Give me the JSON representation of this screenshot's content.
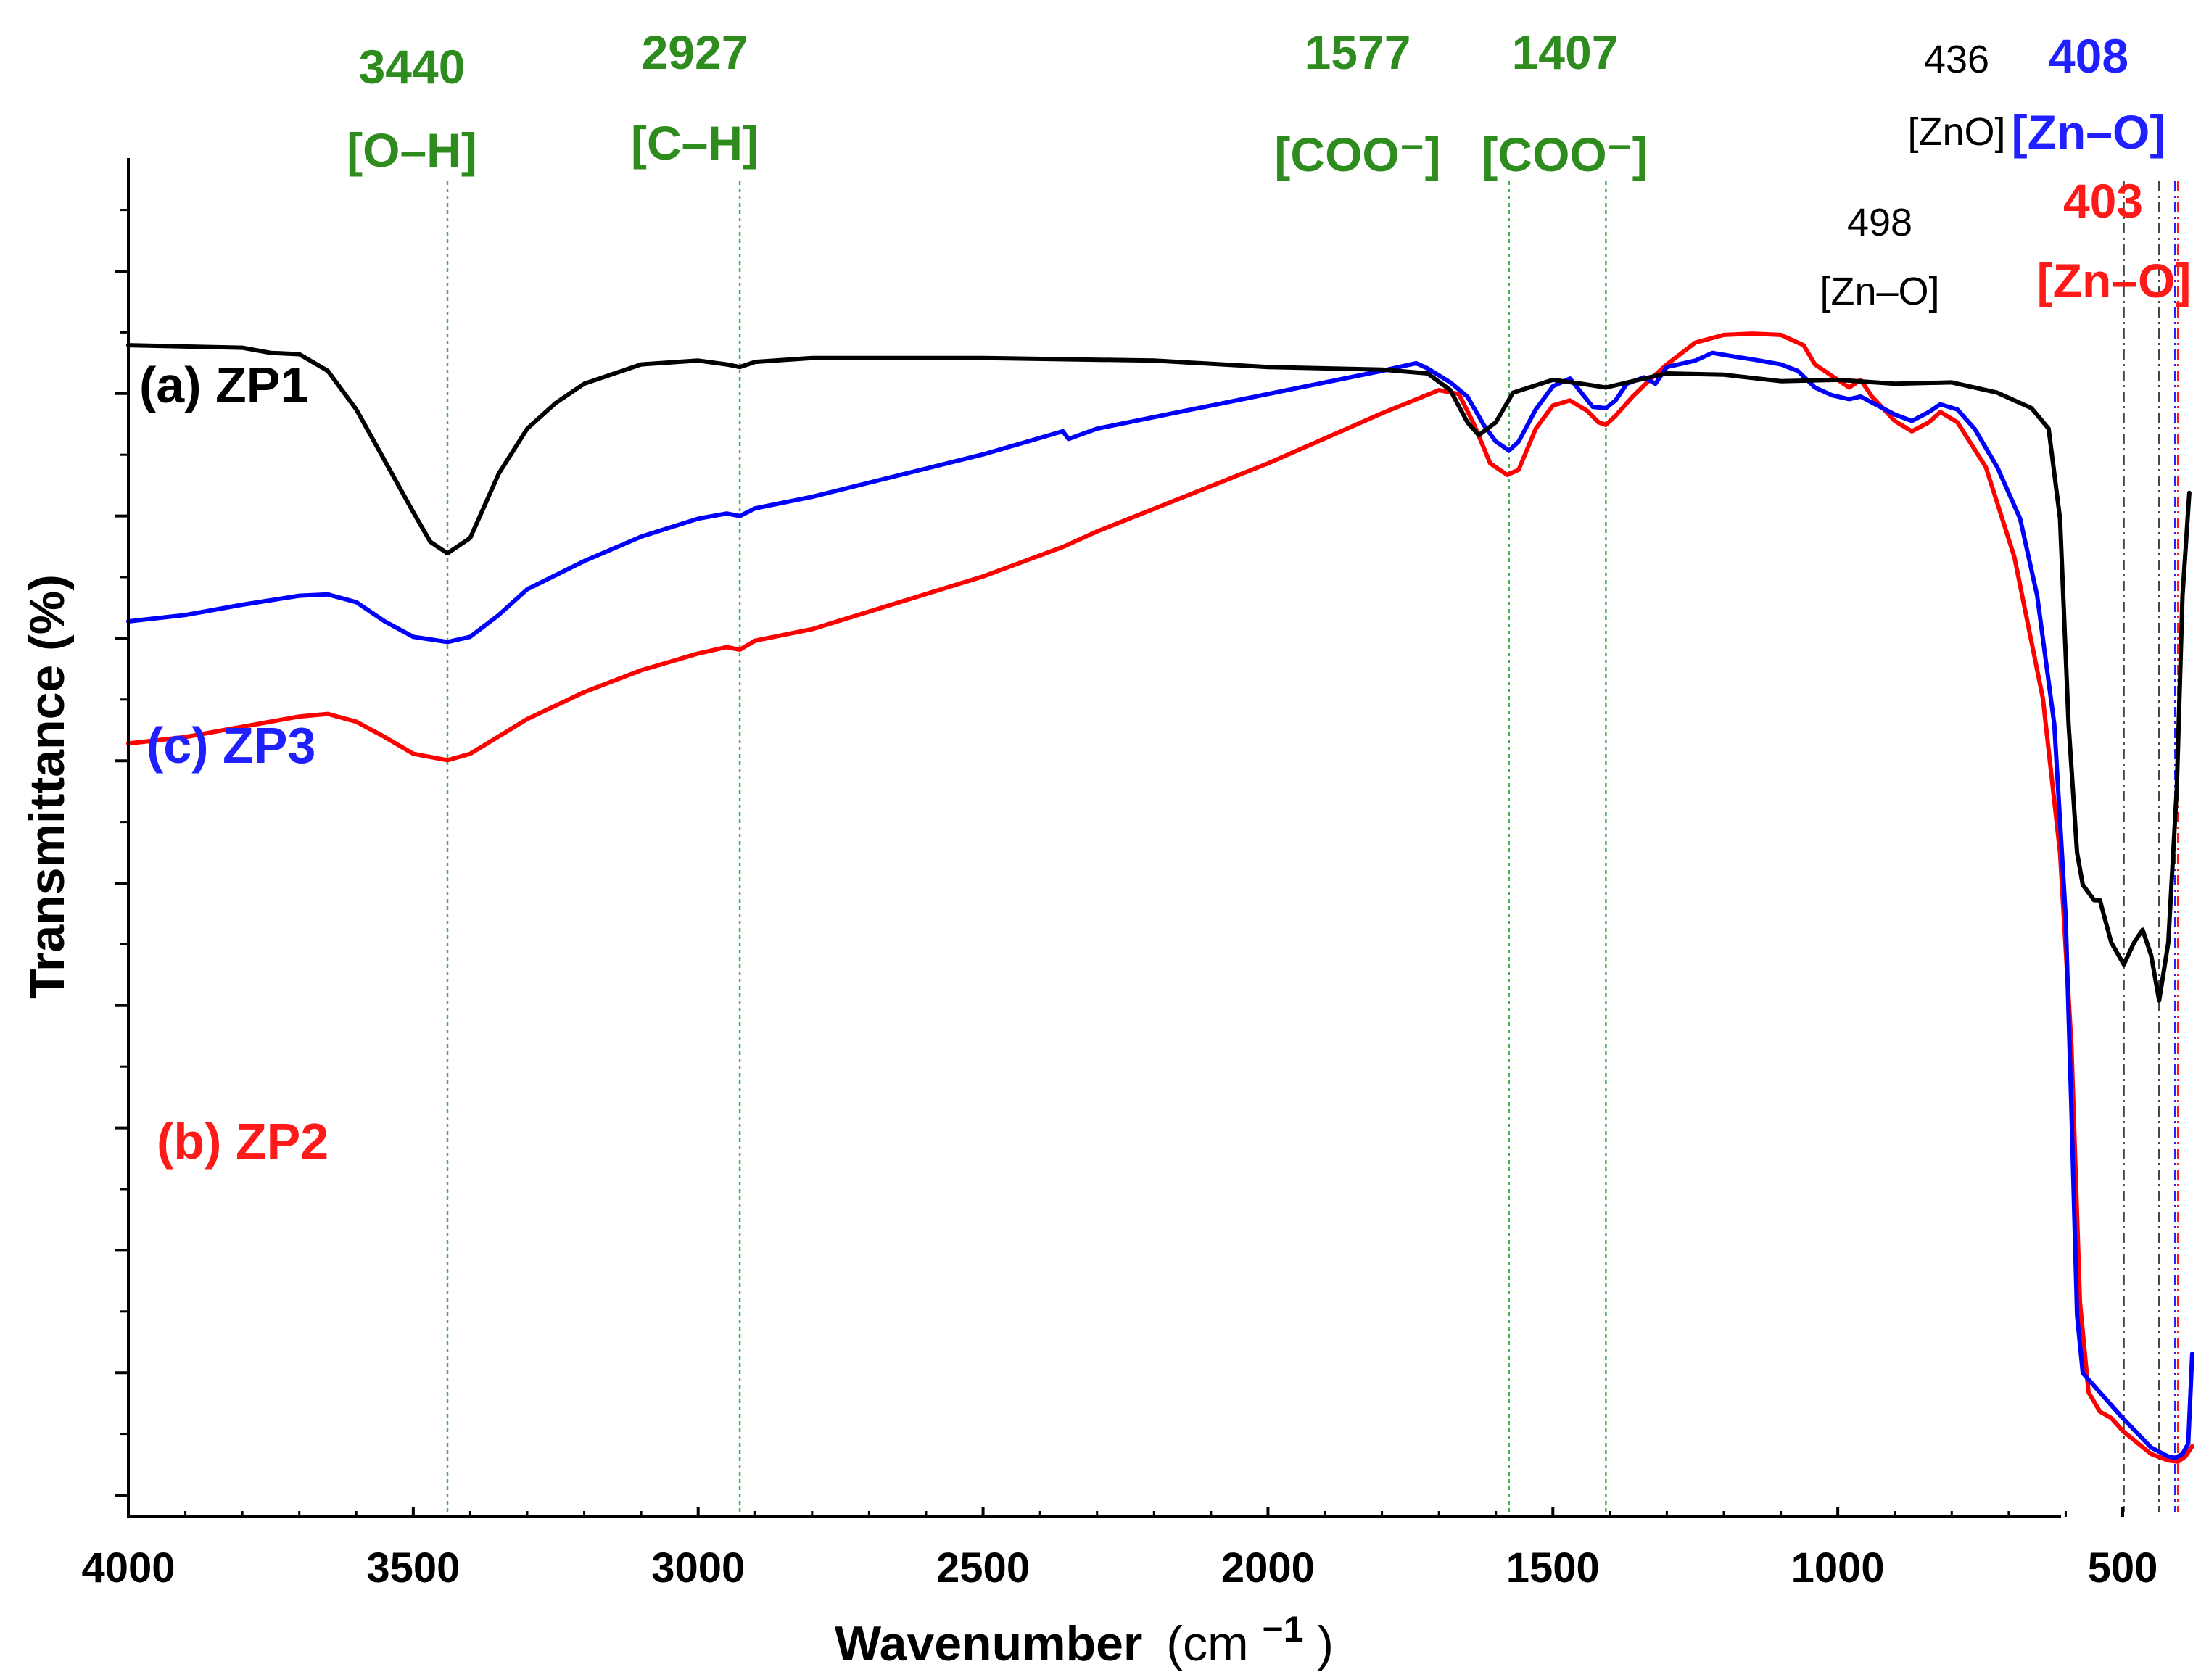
{
  "chart_data": {
    "type": "line",
    "title": "",
    "xlabel": "Wavenumber",
    "xlabel_unit": "(cm",
    "xlabel_unit_sup": "−1",
    "xlabel_unit_close": ")",
    "ylabel": "Transmittance (%)",
    "xlim": [
      4000,
      370
    ],
    "x_reversed": true,
    "ylim": [
      0,
      100
    ],
    "y_tick_labels_shown": false,
    "grid": false,
    "x_ticks": [
      4000,
      3500,
      3000,
      2500,
      2000,
      1500,
      1000,
      500
    ],
    "x_tick_labels": [
      "4000",
      "3500",
      "3000",
      "2500",
      "2000",
      "1500",
      "1000",
      "500"
    ],
    "series": [
      {
        "name": "(a) ZP1",
        "color": "#000000",
        "points": [
          [
            4000,
            89.5
          ],
          [
            3800,
            89.3
          ],
          [
            3750,
            88.9
          ],
          [
            3700,
            88.8
          ],
          [
            3650,
            87.5
          ],
          [
            3600,
            84.5
          ],
          [
            3550,
            80.5
          ],
          [
            3500,
            76.5
          ],
          [
            3470,
            74.2
          ],
          [
            3440,
            73.3
          ],
          [
            3400,
            74.5
          ],
          [
            3350,
            79.5
          ],
          [
            3300,
            83
          ],
          [
            3250,
            85
          ],
          [
            3200,
            86.5
          ],
          [
            3100,
            88
          ],
          [
            3000,
            88.3
          ],
          [
            2950,
            88
          ],
          [
            2927,
            87.8
          ],
          [
            2900,
            88.2
          ],
          [
            2800,
            88.5
          ],
          [
            2500,
            88.5
          ],
          [
            2200,
            88.3
          ],
          [
            2000,
            87.8
          ],
          [
            1800,
            87.6
          ],
          [
            1720,
            87.3
          ],
          [
            1680,
            86
          ],
          [
            1650,
            83.5
          ],
          [
            1630,
            82.5
          ],
          [
            1600,
            83.5
          ],
          [
            1570,
            85.8
          ],
          [
            1500,
            86.8
          ],
          [
            1450,
            86.5
          ],
          [
            1407,
            86.2
          ],
          [
            1350,
            86.8
          ],
          [
            1300,
            87.3
          ],
          [
            1200,
            87.2
          ],
          [
            1100,
            86.7
          ],
          [
            1000,
            86.8
          ],
          [
            900,
            86.5
          ],
          [
            800,
            86.6
          ],
          [
            720,
            85.8
          ],
          [
            660,
            84.6
          ],
          [
            630,
            83
          ],
          [
            610,
            76
          ],
          [
            595,
            60
          ],
          [
            580,
            50
          ],
          [
            570,
            47.5
          ],
          [
            550,
            46.3
          ],
          [
            540,
            46.3
          ],
          [
            520,
            43
          ],
          [
            498,
            41.3
          ],
          [
            480,
            43
          ],
          [
            465,
            44
          ],
          [
            450,
            42
          ],
          [
            436,
            38.5
          ],
          [
            420,
            43
          ],
          [
            405,
            55
          ],
          [
            395,
            70
          ],
          [
            383,
            78
          ]
        ]
      },
      {
        "name": "(b) ZP2",
        "color": "#ff0000",
        "points": [
          [
            4000,
            58.5
          ],
          [
            3900,
            59
          ],
          [
            3800,
            59.8
          ],
          [
            3700,
            60.6
          ],
          [
            3650,
            60.8
          ],
          [
            3600,
            60.2
          ],
          [
            3550,
            59
          ],
          [
            3500,
            57.7
          ],
          [
            3440,
            57.2
          ],
          [
            3400,
            57.7
          ],
          [
            3300,
            60.4
          ],
          [
            3200,
            62.5
          ],
          [
            3100,
            64.2
          ],
          [
            3000,
            65.5
          ],
          [
            2950,
            66
          ],
          [
            2927,
            65.8
          ],
          [
            2900,
            66.5
          ],
          [
            2800,
            67.4
          ],
          [
            2500,
            71.5
          ],
          [
            2360,
            73.8
          ],
          [
            2300,
            75
          ],
          [
            2000,
            80.3
          ],
          [
            1800,
            84.2
          ],
          [
            1700,
            86
          ],
          [
            1665,
            85.7
          ],
          [
            1640,
            83.5
          ],
          [
            1610,
            80.3
          ],
          [
            1580,
            79.4
          ],
          [
            1560,
            79.8
          ],
          [
            1530,
            83
          ],
          [
            1500,
            84.8
          ],
          [
            1470,
            85.2
          ],
          [
            1440,
            84.4
          ],
          [
            1420,
            83.5
          ],
          [
            1407,
            83.3
          ],
          [
            1390,
            84
          ],
          [
            1360,
            85.5
          ],
          [
            1330,
            86.8
          ],
          [
            1300,
            88
          ],
          [
            1250,
            89.7
          ],
          [
            1200,
            90.3
          ],
          [
            1150,
            90.4
          ],
          [
            1100,
            90.3
          ],
          [
            1060,
            89.5
          ],
          [
            1040,
            88
          ],
          [
            1010,
            87.1
          ],
          [
            980,
            86.2
          ],
          [
            960,
            86.8
          ],
          [
            940,
            85.5
          ],
          [
            900,
            83.6
          ],
          [
            870,
            82.8
          ],
          [
            840,
            83.5
          ],
          [
            820,
            84.3
          ],
          [
            790,
            83.5
          ],
          [
            740,
            80
          ],
          [
            690,
            73
          ],
          [
            640,
            62
          ],
          [
            610,
            50
          ],
          [
            590,
            35
          ],
          [
            575,
            15
          ],
          [
            560,
            8
          ],
          [
            540,
            6.5
          ],
          [
            520,
            6
          ],
          [
            500,
            5
          ],
          [
            450,
            3.2
          ],
          [
            420,
            2.7
          ],
          [
            403,
            2.6
          ],
          [
            390,
            3
          ],
          [
            378,
            3.8
          ]
        ]
      },
      {
        "name": "(c) ZP3",
        "color": "#0000ff",
        "points": [
          [
            4000,
            68
          ],
          [
            3900,
            68.5
          ],
          [
            3800,
            69.3
          ],
          [
            3700,
            70
          ],
          [
            3650,
            70.1
          ],
          [
            3600,
            69.5
          ],
          [
            3550,
            68
          ],
          [
            3500,
            66.8
          ],
          [
            3440,
            66.4
          ],
          [
            3400,
            66.8
          ],
          [
            3350,
            68.5
          ],
          [
            3300,
            70.5
          ],
          [
            3200,
            72.7
          ],
          [
            3100,
            74.6
          ],
          [
            3000,
            76
          ],
          [
            2950,
            76.4
          ],
          [
            2927,
            76.2
          ],
          [
            2900,
            76.8
          ],
          [
            2800,
            77.7
          ],
          [
            2500,
            81
          ],
          [
            2360,
            82.8
          ],
          [
            2350,
            82.2
          ],
          [
            2300,
            83
          ],
          [
            2000,
            85.7
          ],
          [
            1800,
            87.5
          ],
          [
            1740,
            88.1
          ],
          [
            1720,
            87.7
          ],
          [
            1680,
            86.6
          ],
          [
            1650,
            85.5
          ],
          [
            1620,
            83.2
          ],
          [
            1600,
            82
          ],
          [
            1577,
            81.3
          ],
          [
            1560,
            82
          ],
          [
            1530,
            84.5
          ],
          [
            1500,
            86.3
          ],
          [
            1470,
            86.9
          ],
          [
            1450,
            85.8
          ],
          [
            1430,
            84.7
          ],
          [
            1407,
            84.6
          ],
          [
            1390,
            85.2
          ],
          [
            1370,
            86.5
          ],
          [
            1340,
            87
          ],
          [
            1320,
            86.5
          ],
          [
            1300,
            87.8
          ],
          [
            1250,
            88.3
          ],
          [
            1220,
            88.9
          ],
          [
            1180,
            88.6
          ],
          [
            1150,
            88.4
          ],
          [
            1100,
            88
          ],
          [
            1070,
            87.5
          ],
          [
            1040,
            86.2
          ],
          [
            1010,
            85.6
          ],
          [
            980,
            85.3
          ],
          [
            960,
            85.5
          ],
          [
            930,
            84.8
          ],
          [
            900,
            84.1
          ],
          [
            870,
            83.6
          ],
          [
            840,
            84.3
          ],
          [
            820,
            84.9
          ],
          [
            790,
            84.5
          ],
          [
            760,
            83
          ],
          [
            720,
            80
          ],
          [
            680,
            76
          ],
          [
            650,
            70
          ],
          [
            620,
            60
          ],
          [
            600,
            45
          ],
          [
            590,
            30
          ],
          [
            580,
            14
          ],
          [
            570,
            9.5
          ],
          [
            550,
            8.5
          ],
          [
            520,
            7
          ],
          [
            500,
            6
          ],
          [
            450,
            3.7
          ],
          [
            420,
            3
          ],
          [
            408,
            2.9
          ],
          [
            395,
            3.2
          ],
          [
            385,
            4
          ],
          [
            378,
            11
          ]
        ]
      }
    ],
    "series_labels": {
      "zp1": "(a) ZP1",
      "zp2": "(b) ZP2",
      "zp3": "(c) ZP3"
    },
    "annotations": [
      {
        "id": "o-h",
        "wavenumber": 3440,
        "value": "3440",
        "assignment": "[O–H]",
        "color": "#2e8b1e",
        "line_color": "#4caf50"
      },
      {
        "id": "c-h",
        "wavenumber": 2927,
        "value": "2927",
        "assignment": "[C–H]",
        "color": "#2e8b1e",
        "line_color": "#4caf50"
      },
      {
        "id": "coo-1577",
        "wavenumber": 1577,
        "value": "1577",
        "assignment": "[COO⁻]",
        "color": "#2e8b1e",
        "line_color": "#4caf50"
      },
      {
        "id": "coo-1407",
        "wavenumber": 1407,
        "value": "1407",
        "assignment": "[COO⁻]",
        "color": "#2e8b1e",
        "line_color": "#4caf50"
      },
      {
        "id": "zno-436",
        "wavenumber": 436,
        "value": "436",
        "assignment": "[ZnO]",
        "color": "#000000",
        "line_color": "#444444"
      },
      {
        "id": "zno-498",
        "wavenumber": 498,
        "value": "498",
        "assignment": "[Zn–O]",
        "color": "#000000",
        "line_color": "#444444"
      },
      {
        "id": "zno-408",
        "wavenumber": 408,
        "value": "408",
        "assignment": "[Zn–O]",
        "color": "#1f1fff",
        "line_color": "#1f1fff"
      },
      {
        "id": "zno-403",
        "wavenumber": 403,
        "value": "403",
        "assignment": "[Zn–O]",
        "color": "#ff1a1a",
        "line_color": "#ff1a1a"
      }
    ]
  }
}
